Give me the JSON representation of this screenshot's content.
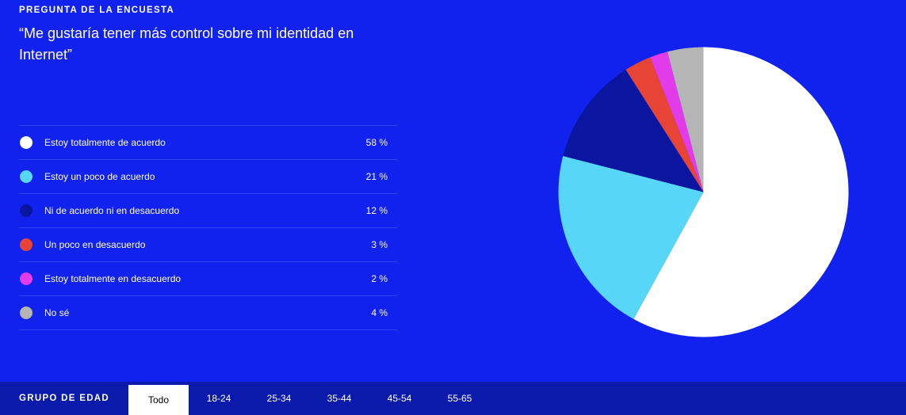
{
  "header": {
    "eyebrow": "PREGUNTA DE LA ENCUESTA",
    "question": "“Me gustaría tener más control sobre mi identidad en Internet”"
  },
  "chart_data": {
    "type": "pie",
    "title": "",
    "categories": [
      "Estoy totalmente de acuerdo",
      "Estoy un poco de acuerdo",
      "Ni de acuerdo ni en desacuerdo",
      "Un poco en desacuerdo",
      "Estoy totalmente en desacuerdo",
      "No sé"
    ],
    "values": [
      58,
      21,
      12,
      3,
      2,
      4
    ],
    "value_labels": [
      "58 %",
      "21 %",
      "12 %",
      "3 %",
      "2 %",
      "4 %"
    ],
    "colors": [
      "#ffffff",
      "#57d6f7",
      "#0a16a0",
      "#e74436",
      "#e23bea",
      "#b5b5b5"
    ],
    "legend_placement": "left"
  },
  "filters": {
    "label": "GRUPO DE EDAD",
    "tabs": [
      {
        "label": "Todo",
        "active": true
      },
      {
        "label": "18-24",
        "active": false
      },
      {
        "label": "25-34",
        "active": false
      },
      {
        "label": "35-44",
        "active": false
      },
      {
        "label": "45-54",
        "active": false
      },
      {
        "label": "55-65",
        "active": false
      }
    ]
  }
}
